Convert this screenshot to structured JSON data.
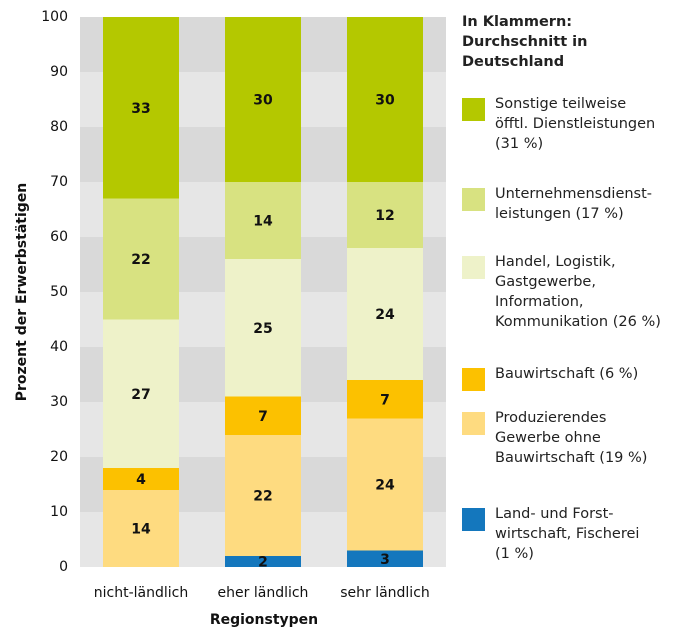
{
  "chart_data": {
    "type": "stacked-bar",
    "legend_title": "In Klammern:\nDurchschnitt in\nDeutschland",
    "xlabel": "Regionstypen",
    "ylabel": "Prozent der Erwerbstätigen",
    "categories": [
      "nicht-ländlich",
      "eher ländlich",
      "sehr ländlich"
    ],
    "ylim": [
      0,
      100
    ],
    "yticks": [
      0,
      10,
      20,
      30,
      40,
      50,
      60,
      70,
      80,
      90,
      100
    ],
    "grid": true,
    "series": [
      {
        "name": "Land- und Forst-\nwirtschaft, Fischerei\n(1 %)",
        "color": "#1477bd",
        "values": [
          null,
          2,
          3
        ]
      },
      {
        "name": "Produzierendes\nGewerbe ohne\nBauwirtschaft (19 %)",
        "color": "#fedb80",
        "values": [
          14,
          22,
          24
        ]
      },
      {
        "name": "Bauwirtschaft (6 %)",
        "color": "#fcc100",
        "values": [
          4,
          7,
          7
        ]
      },
      {
        "name": "Handel, Logistik,\nGastgewerbe,\nInformation,\nKommunikation (26 %)",
        "color": "#eef2c9",
        "values": [
          27,
          25,
          24
        ]
      },
      {
        "name": "Unternehmensdienst-\nleistungen (17 %)",
        "color": "#d8e281",
        "values": [
          22,
          14,
          12
        ]
      },
      {
        "name": "Sonstige teilweise\nöfftl. Dienstleistungen\n(31 %)",
        "color": "#b4c800",
        "values": [
          33,
          30,
          30
        ]
      }
    ]
  }
}
